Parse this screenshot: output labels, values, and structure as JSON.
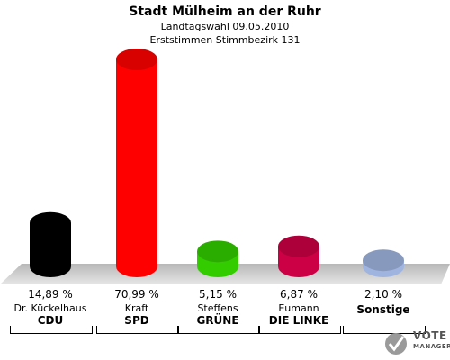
{
  "header": {
    "title": "Stadt Mülheim an der Ruhr",
    "subtitle": "Landtagswahl 09.05.2010",
    "subtitle2": "Erststimmen Stimmbezirk 131"
  },
  "chart_data": {
    "type": "bar",
    "categories": [
      "CDU",
      "SPD",
      "GRÜNE",
      "DIE LINKE",
      "Sonstige"
    ],
    "candidates": [
      "Dr. Kückelhaus",
      "Kraft",
      "Steffens",
      "Eumann",
      ""
    ],
    "values": [
      14.89,
      70.99,
      5.15,
      6.87,
      2.1
    ],
    "value_labels": [
      "14,89 %",
      "70,99 %",
      "5,15 %",
      "6,87 %",
      "2,10 %"
    ],
    "colors": [
      "#000000",
      "#ff0000",
      "#33cc00",
      "#cc0044",
      "#a0b4e0"
    ],
    "ylim": [
      0,
      75
    ]
  },
  "logo": {
    "word1": "VOTE",
    "word2": "MANAGER"
  }
}
